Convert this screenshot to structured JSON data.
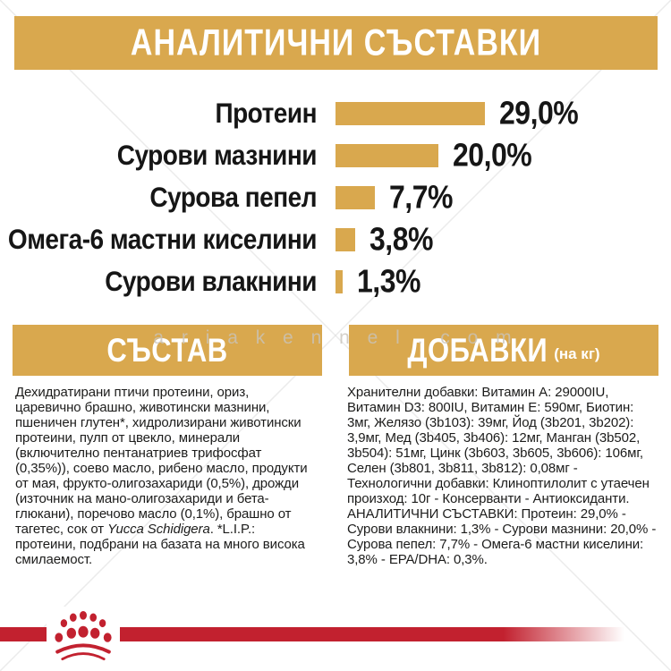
{
  "header": {
    "title": "АНАЛИТИЧНИ СЪСТАВКИ"
  },
  "colors": {
    "gold": "#d9a84e",
    "red": "#c2212f",
    "text": "#1c1c1b",
    "watermark_gray": "#c9c4bb"
  },
  "watermark": {
    "text": "ariakennel.com",
    "display": "a r i a k e n n e l . c o m"
  },
  "chart_data": {
    "type": "bar",
    "orientation": "horizontal",
    "categories": [
      "Протеин",
      "Сурови мазнини",
      "Сурова пепел",
      "Омега-6 мастни киселини",
      "Сурови влакнини"
    ],
    "values": [
      29.0,
      20.0,
      7.7,
      3.8,
      1.3
    ],
    "value_labels": [
      "29,0%",
      "20,0%",
      "7,7%",
      "3,8%",
      "1,3%"
    ],
    "bar_color": "#d9a84e",
    "xlim": [
      0,
      29.0
    ],
    "title": "АНАЛИТИЧНИ СЪСТАВКИ",
    "legend": "none",
    "grid": false
  },
  "sections": {
    "composition": {
      "title": "СЪСТАВ",
      "body_before_italic": "Дехидратирани птичи протеини, ориз, царевично брашно, животински мазнини, пшеничен глутен*, хидролизирани животински протеини, пулп от цвекло, минерали (включително пентанатриев трифосфат (0,35%)), соево масло, рибено масло, продукти от мая, фрукто-олигозахариди (0,5%), дрожди (източник на мано-олигозахариди и бета-глюкани), поречово масло (0,1%), брашно от тагетес, сок от ",
      "body_italic": "Yucca Schidigera",
      "body_after_italic": ". *L.I.P.: протеини, подбрани на базата на много висока смилаемост."
    },
    "additives": {
      "title": "ДОБАВКИ",
      "title_suffix": "(на кг)",
      "paragraph1": "Хранителни добавки: Витамин A: 29000IU, Витамин D3: 800IU, Витамин E: 590мг, Биотин: 3мг, Желязо (3b103): 39мг, Йод (3b201, 3b202): 3,9мг, Мед (3b405, 3b406): 12мг, Манган (3b502, 3b504): 51мг, Цинк (3b603, 3b605, 3b606): 106мг, Селен (3b801, 3b811, 3b812): 0,08мг - Технологични добавки: Клиноптилолит с утаечен произход: 10г - Консерванти - Антиоксиданти.",
      "paragraph2": "АНАЛИТИЧНИ СЪСТАВКИ: Протеин: 29,0% - Сурови влакнини: 1,3% - Сурови мазнини: 20,0% - Сурова пепел: 7,7% - Омега-6 мастни киселини: 3,8% - EPA/DHA: 0,3%."
    }
  },
  "footer": {
    "brand_mark": "royal-canin-crown"
  }
}
